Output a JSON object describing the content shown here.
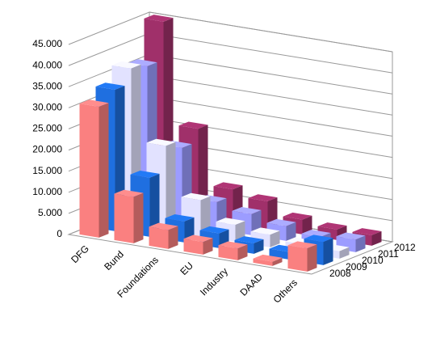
{
  "chart_data": {
    "type": "bar3d",
    "categories": [
      "DFG",
      "Bund",
      "Foundations",
      "EU",
      "Industry",
      "DAAD",
      "Others"
    ],
    "series": [
      {
        "name": "2008",
        "color": "#fa8080",
        "values": [
          31000,
          11000,
          4500,
          3000,
          2800,
          1000,
          5500
        ]
      },
      {
        "name": "2009",
        "color": "#1f6fe0",
        "values": [
          33500,
          14000,
          5000,
          3500,
          2500,
          1800,
          5500
        ]
      },
      {
        "name": "2010",
        "color": "#e2e2ff",
        "values": [
          37000,
          20000,
          8500,
          4000,
          3000,
          2000,
          1800
        ]
      },
      {
        "name": "2011",
        "color": "#9c9cff",
        "values": [
          36000,
          18000,
          6500,
          5000,
          3500,
          2300,
          3000
        ]
      },
      {
        "name": "2012",
        "color": "#a0306a",
        "values": [
          45000,
          21000,
          8000,
          6500,
          3500,
          2500,
          2500
        ]
      }
    ],
    "ylim": [
      0,
      45000
    ],
    "yticks": [
      0,
      {
        "value": 5000,
        "label": "5.000"
      },
      {
        "value": 10000,
        "label": "10.000"
      },
      {
        "value": 15000,
        "label": "15.000"
      },
      {
        "value": 20000,
        "label": "20.000"
      },
      {
        "value": 25000,
        "label": "25.000"
      },
      {
        "value": 30000,
        "label": "30.000"
      },
      {
        "value": 35000,
        "label": "35.000"
      },
      {
        "value": 40000,
        "label": "40.000"
      },
      {
        "value": 45000,
        "label": "45.000"
      }
    ],
    "grid": true
  }
}
